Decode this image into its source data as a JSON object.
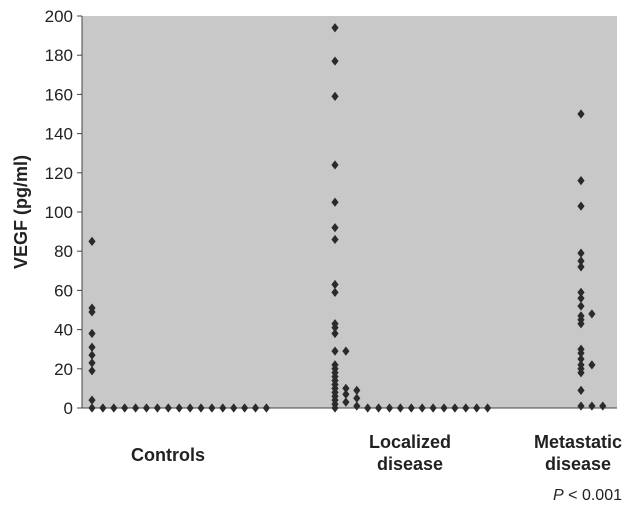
{
  "chart_data": {
    "type": "scatter",
    "title": "",
    "xlabel": "",
    "ylabel": "VEGF (pg/ml)",
    "ylim": [
      0,
      200
    ],
    "yticks": [
      "0",
      "20",
      "40",
      "60",
      "80",
      "100",
      "120",
      "140",
      "160",
      "180",
      "200"
    ],
    "grid": false,
    "background_color": "#c8c8c8",
    "marker_color": "#2a2a2a",
    "categories": [
      {
        "lines": [
          "Controls"
        ]
      },
      {
        "lines": [
          "Localized",
          "disease"
        ]
      },
      {
        "lines": [
          "Metastatic",
          "disease"
        ]
      }
    ],
    "series": [
      {
        "category": "Controls",
        "columns": [
          [
            85,
            51,
            49,
            38,
            31,
            27,
            23,
            19,
            4,
            0
          ],
          [
            0
          ],
          [
            0
          ],
          [
            0
          ],
          [
            0
          ],
          [
            0
          ],
          [
            0
          ],
          [
            0
          ],
          [
            0
          ],
          [
            0
          ],
          [
            0
          ],
          [
            0
          ],
          [
            0
          ],
          [
            0
          ],
          [
            0
          ],
          [
            0
          ],
          [
            0
          ]
        ]
      },
      {
        "category": "Localized disease",
        "columns": [
          [
            194,
            177,
            159,
            124,
            105,
            92,
            86,
            63,
            59,
            43,
            41,
            38,
            29,
            22,
            20,
            18,
            16,
            14,
            12,
            10,
            8,
            6,
            4,
            2,
            0
          ],
          [
            29,
            10,
            7,
            3
          ],
          [
            9,
            5,
            1
          ],
          [
            0
          ],
          [
            0
          ],
          [
            0
          ],
          [
            0
          ],
          [
            0
          ],
          [
            0
          ],
          [
            0
          ],
          [
            0
          ],
          [
            0
          ],
          [
            0
          ],
          [
            0
          ],
          [
            0
          ]
        ]
      },
      {
        "category": "Metastatic disease",
        "columns": [
          [
            150,
            116,
            103,
            79,
            75,
            72,
            59,
            56,
            52,
            47,
            45,
            43,
            30,
            28,
            25,
            22,
            20,
            18,
            9,
            1
          ],
          [
            48,
            22,
            1
          ],
          [
            1
          ]
        ]
      }
    ],
    "annotation": {
      "italic": "P",
      "rest": " < 0.001"
    }
  }
}
